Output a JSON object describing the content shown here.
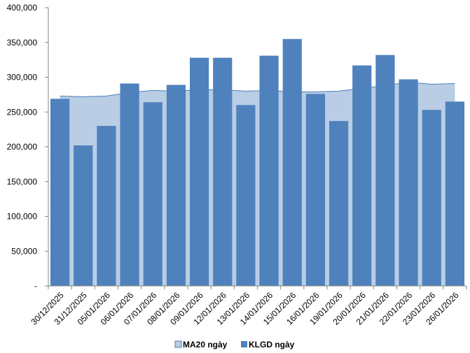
{
  "chart_data": {
    "type": "bar",
    "categories": [
      "30/12/2025",
      "31/12/2025",
      "05/01/2026",
      "06/01/2026",
      "07/01/2026",
      "08/01/2026",
      "09/01/2026",
      "12/01/2026",
      "13/01/2026",
      "14/01/2026",
      "15/01/2026",
      "16/01/2026",
      "19/01/2026",
      "20/01/2026",
      "21/01/2026",
      "22/01/2026",
      "23/01/2026",
      "26/01/2026"
    ],
    "series": [
      {
        "name": "MA20 ngày",
        "kind": "area",
        "color": "#b9cde5",
        "stroke": "#4a7ebb",
        "values": [
          273000,
          272000,
          273000,
          278000,
          281000,
          280000,
          282000,
          282000,
          280000,
          281000,
          279000,
          279000,
          280000,
          284000,
          288000,
          293000,
          290000,
          291000
        ]
      },
      {
        "name": "KLGD ngày",
        "kind": "bar",
        "color": "#4f81bd",
        "values": [
          269000,
          202000,
          230000,
          291000,
          264000,
          289000,
          328000,
          328000,
          260000,
          331000,
          355000,
          276000,
          237000,
          317000,
          332000,
          297000,
          253000,
          265000
        ]
      }
    ],
    "y_ticks": [
      "-",
      "50,000",
      "100,000",
      "150,000",
      "200,000",
      "250,000",
      "300,000",
      "350,000",
      "400,000"
    ],
    "ylim": [
      0,
      400000
    ],
    "grid": false,
    "legend_position": "bottom"
  }
}
